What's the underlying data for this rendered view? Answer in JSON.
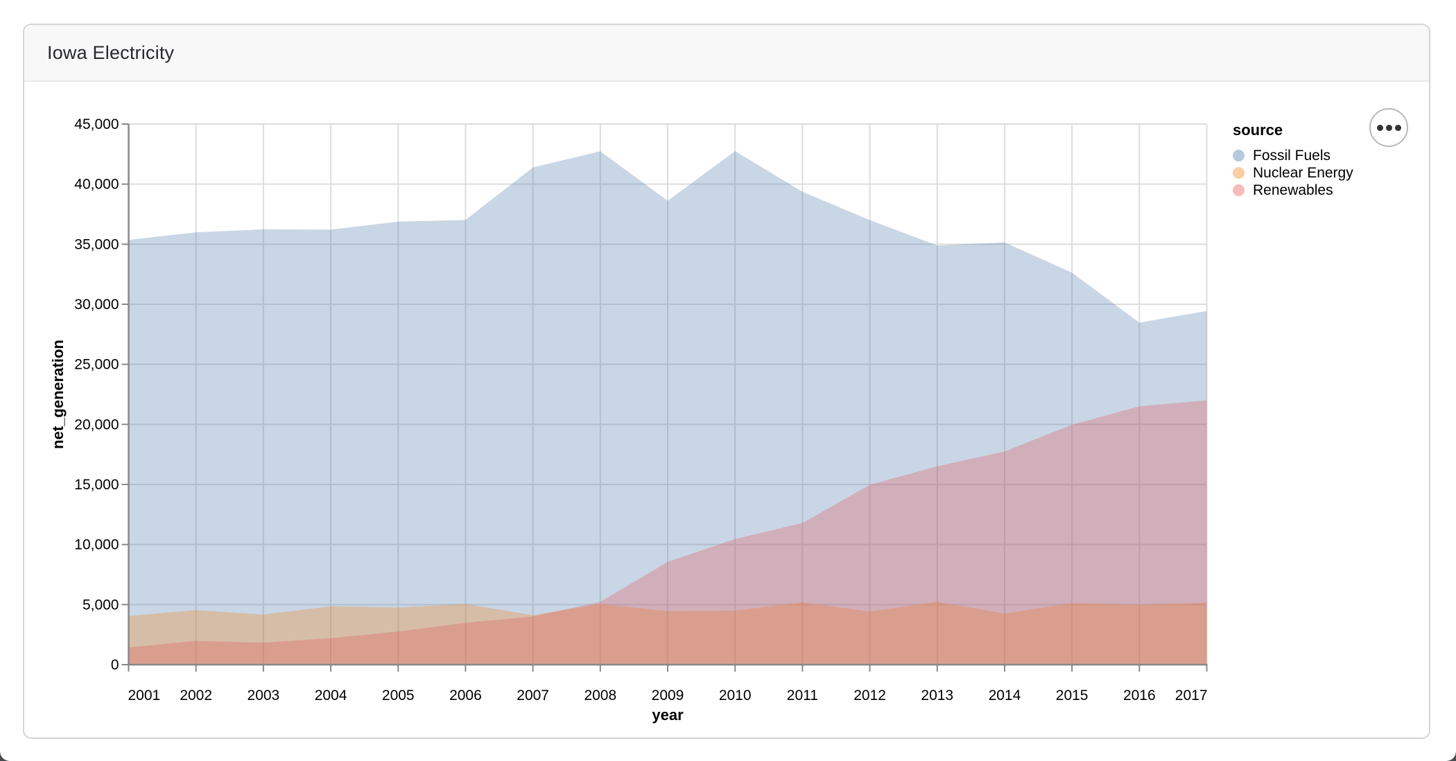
{
  "card": {
    "title": "Iowa Electricity"
  },
  "menu_button": {
    "icon": "ellipsis"
  },
  "chart_data": {
    "type": "area",
    "stacked": false,
    "mark_opacity": 0.3,
    "title": "",
    "xlabel": "year",
    "ylabel": "net_generation",
    "legend_title": "source",
    "legend_position": "right",
    "grid": true,
    "x": [
      2001,
      2002,
      2003,
      2004,
      2005,
      2006,
      2007,
      2008,
      2009,
      2010,
      2011,
      2012,
      2013,
      2014,
      2015,
      2016,
      2017
    ],
    "xlim": [
      2001,
      2017
    ],
    "ylim": [
      0,
      45000
    ],
    "yticks": [
      0,
      5000,
      10000,
      15000,
      20000,
      25000,
      30000,
      35000,
      40000,
      45000
    ],
    "series": [
      {
        "name": "Fossil Fuels",
        "color": "#4c78a8",
        "values": [
          35361,
          35991,
          36234,
          36205,
          36883,
          37014,
          41389,
          42734,
          38620,
          42750,
          39360,
          37005,
          34894,
          35154,
          32629,
          28472,
          29433
        ]
      },
      {
        "name": "Nuclear Energy",
        "color": "#f58518",
        "values": [
          4046,
          4547,
          4163,
          4865,
          4754,
          5055,
          4127,
          5040,
          4472,
          4495,
          5190,
          4417,
          5236,
          4260,
          5129,
          4966,
          5162
        ]
      },
      {
        "name": "Renewables",
        "color": "#e45756",
        "values": [
          1437,
          1978,
          1828,
          2204,
          2757,
          3486,
          4007,
          5226,
          8563,
          10454,
          11791,
          14972,
          16504,
          17748,
          19972,
          21507,
          21990
        ]
      }
    ],
    "axis_colors": {
      "grid": "#dddddd",
      "domain": "#888888",
      "label": "#000000"
    }
  }
}
